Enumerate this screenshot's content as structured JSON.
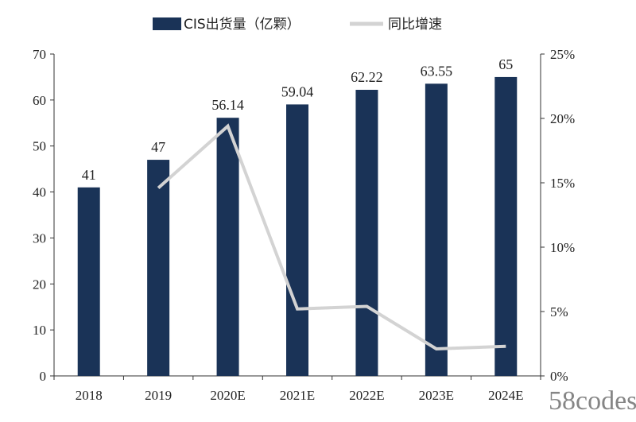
{
  "chart_data": {
    "type": "bar",
    "categories": [
      "2018",
      "2019",
      "2020E",
      "2021E",
      "2022E",
      "2023E",
      "2024E"
    ],
    "series": [
      {
        "name": "CIS出货量（亿颗）",
        "type": "bar",
        "axis": "left",
        "values": [
          41,
          47,
          56.14,
          59.04,
          62.22,
          63.55,
          65
        ],
        "labels": [
          "41",
          "47",
          "56.14",
          "59.04",
          "62.22",
          "63.55",
          "65"
        ],
        "color": "#1a3357"
      },
      {
        "name": "同比增速",
        "type": "line",
        "axis": "right",
        "values": [
          null,
          14.6,
          19.4,
          5.2,
          5.4,
          2.1,
          2.3
        ],
        "color": "#d3d3d3"
      }
    ],
    "y_left": {
      "ylim": [
        0,
        70
      ],
      "ticks": [
        "0",
        "10",
        "20",
        "30",
        "40",
        "50",
        "60",
        "70"
      ]
    },
    "y_right": {
      "ylim": [
        0,
        25
      ],
      "ticks": [
        "0%",
        "5%",
        "10%",
        "15%",
        "20%",
        "25%"
      ]
    },
    "legend": {
      "position": "top-center"
    },
    "grid": false
  },
  "watermark": "58codes"
}
